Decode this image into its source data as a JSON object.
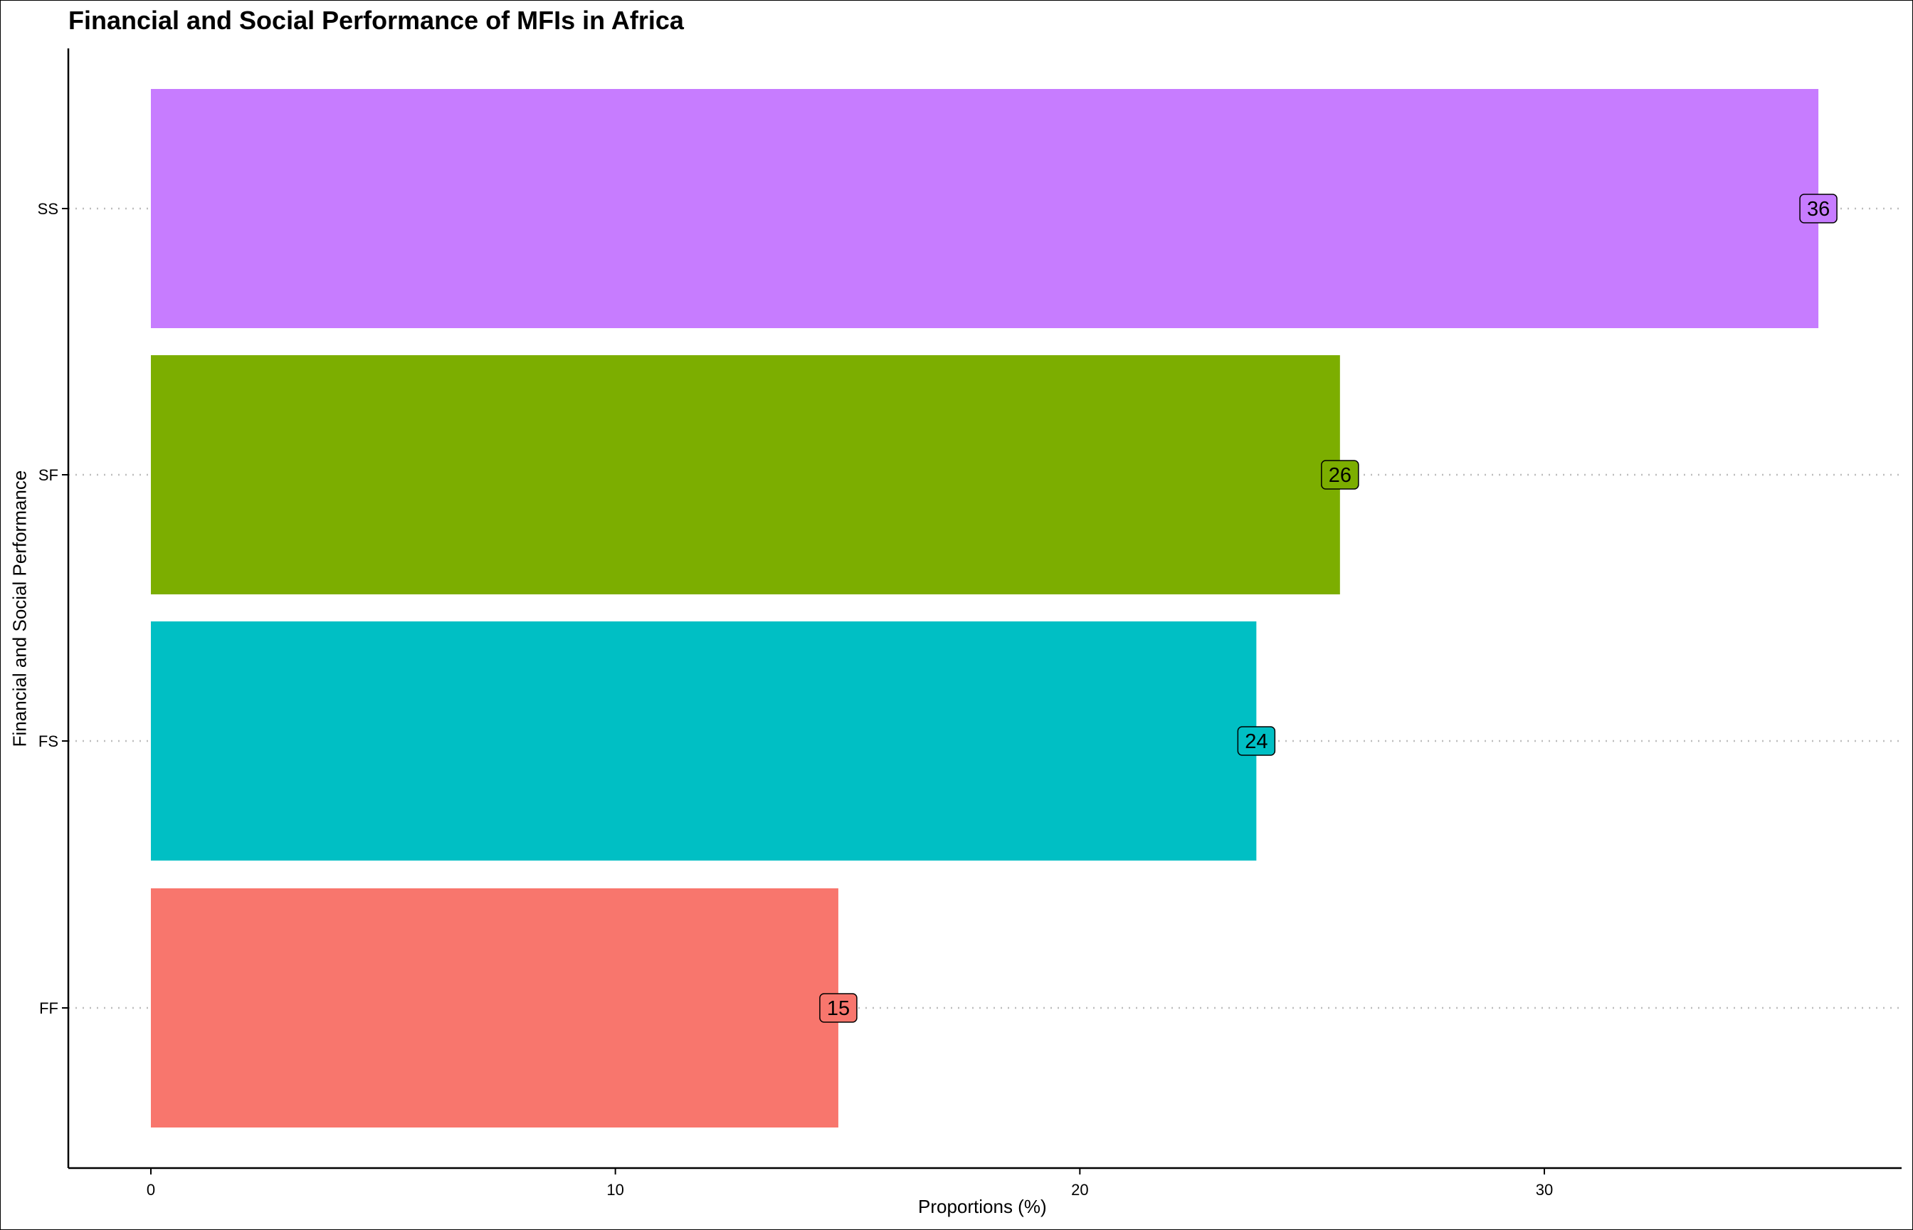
{
  "chart_data": {
    "type": "bar",
    "orientation": "horizontal",
    "title": "Financial and Social Performance of MFIs in Africa",
    "xlabel": "Proportions (%)",
    "ylabel": "Financial and Social Performance",
    "categories": [
      "FF",
      "FS",
      "SF",
      "SS"
    ],
    "values": [
      14.8,
      23.8,
      25.6,
      35.9
    ],
    "data_labels": [
      "15",
      "24",
      "26",
      "36"
    ],
    "colors": [
      "#F8766D",
      "#00BFC4",
      "#7CAE00",
      "#C77CFF"
    ],
    "xlim": [
      -1.8,
      38
    ],
    "xticks": [
      0,
      10,
      20,
      30
    ],
    "grid": "horizontal dotted at categories",
    "legend": "none"
  }
}
